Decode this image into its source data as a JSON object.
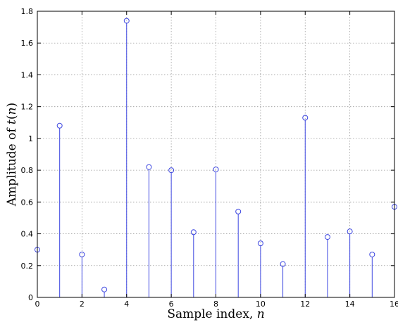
{
  "chart_data": {
    "type": "stem",
    "xlabel": "Sample index, ",
    "xlabel_var": "n",
    "ylabel": "Amplitude of ",
    "ylabel_var": "t",
    "ylabel_arg": "n",
    "xlim": [
      0,
      16
    ],
    "ylim": [
      0,
      1.8
    ],
    "xticks": [
      0,
      2,
      4,
      6,
      8,
      10,
      12,
      14,
      16
    ],
    "yticks": [
      0,
      0.2,
      0.4,
      0.6,
      0.8,
      1,
      1.2,
      1.4,
      1.6,
      1.8
    ],
    "grid": true,
    "series": [
      {
        "color": "#3b45e0",
        "x": [
          0,
          1,
          2,
          3,
          4,
          5,
          6,
          7,
          8,
          9,
          10,
          11,
          12,
          13,
          14,
          15,
          16
        ],
        "values": [
          0.3,
          1.08,
          0.27,
          0.05,
          1.74,
          0.82,
          0.8,
          0.41,
          0.805,
          0.54,
          0.34,
          0.21,
          1.13,
          0.38,
          0.415,
          0.27,
          0.57
        ]
      }
    ]
  }
}
